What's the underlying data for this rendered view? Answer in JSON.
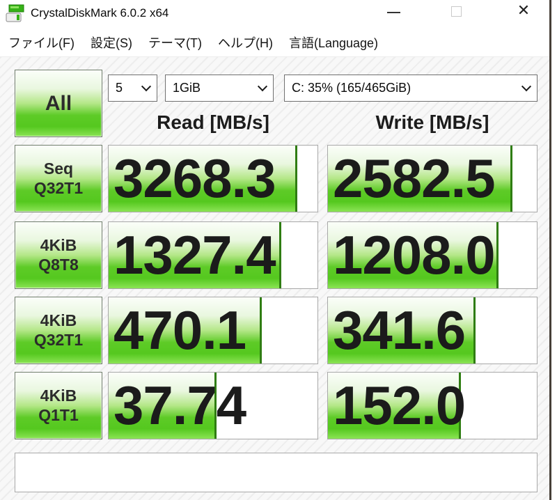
{
  "window": {
    "title": "CrystalDiskMark 6.0.2 x64",
    "controls": {
      "minimize": "minimize",
      "maximize": "maximize",
      "close": "close"
    }
  },
  "menu": {
    "items": [
      {
        "label": "ファイル(F)"
      },
      {
        "label": "設定(S)"
      },
      {
        "label": "テーマ(T)"
      },
      {
        "label": "ヘルプ(H)"
      },
      {
        "label": "言語(Language)"
      }
    ]
  },
  "toolbar": {
    "all_button_label": "All",
    "test_count_value": "5",
    "test_size_value": "1GiB",
    "drive_value": "C: 35% (165/465GiB)"
  },
  "columns": {
    "read_header": "Read [MB/s]",
    "write_header": "Write [MB/s]"
  },
  "rows": [
    {
      "label_line1": "Seq",
      "label_line2": "Q32T1",
      "read": "3268.3",
      "write": "2582.5",
      "read_bar_pct": 90.3,
      "write_bar_pct": 88.2
    },
    {
      "label_line1": "4KiB",
      "label_line2": "Q8T8",
      "read": "1327.4",
      "write": "1208.0",
      "read_bar_pct": 82.5,
      "write_bar_pct": 81.6
    },
    {
      "label_line1": "4KiB",
      "label_line2": "Q32T1",
      "read": "470.1",
      "write": "341.6",
      "read_bar_pct": 73.4,
      "write_bar_pct": 70.7
    },
    {
      "label_line1": "4KiB",
      "label_line2": "Q1T1",
      "read": "37.74",
      "write": "152.0",
      "read_bar_pct": 51.5,
      "write_bar_pct": 63.6
    }
  ],
  "status_bar": {
    "comment_value": "",
    "comment_placeholder": ""
  },
  "colors": {
    "bar_green": "#55c81f",
    "bar_green_light": "#e9f7df",
    "bar_marker_green": "#2f7d12",
    "border_gray": "#a8a8a8",
    "window_edge": "#474038",
    "text_dark": "#1b1b1b"
  }
}
